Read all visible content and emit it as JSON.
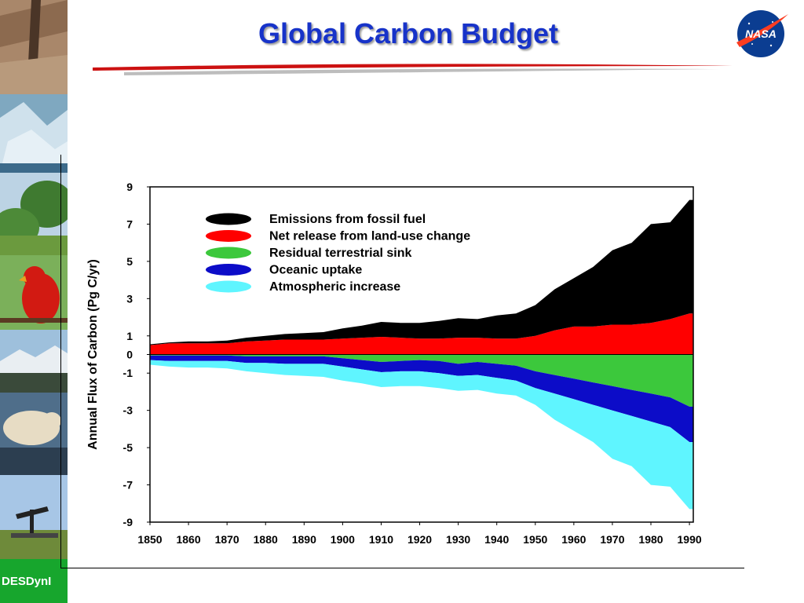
{
  "slide": {
    "title": "Global Carbon Budget",
    "brand_label": "DESDynI",
    "logo_text": "NASA"
  },
  "colors": {
    "title": "#1733c9",
    "fossil": "#000000",
    "landuse": "#ff0000",
    "terrestrial": "#3cc83c",
    "oceanic": "#0c0cc8",
    "atmospheric": "#5ff5ff",
    "brand": "#17a62d",
    "swoosh": "#cc1111"
  },
  "chart_data": {
    "type": "area",
    "title": "",
    "ylabel": "Annual Flux of Carbon (Pg C/yr)",
    "xlabel": "",
    "xlim": [
      1850,
      1991
    ],
    "ylim": [
      -9,
      9
    ],
    "x_ticks": [
      1850,
      1860,
      1870,
      1880,
      1890,
      1900,
      1910,
      1920,
      1930,
      1940,
      1950,
      1960,
      1970,
      1980,
      1990
    ],
    "y_ticks": [
      9,
      7,
      5,
      3,
      1,
      0,
      -1,
      -3,
      -5,
      -7,
      -9
    ],
    "legend_position": "top-left",
    "x": [
      1850,
      1855,
      1860,
      1865,
      1870,
      1875,
      1880,
      1885,
      1890,
      1895,
      1900,
      1905,
      1910,
      1915,
      1920,
      1925,
      1930,
      1935,
      1940,
      1945,
      1950,
      1955,
      1960,
      1965,
      1970,
      1975,
      1980,
      1985,
      1990
    ],
    "series": [
      {
        "name": "Emissions from fossil fuel",
        "color": "#000000",
        "values": [
          0.05,
          0.05,
          0.1,
          0.1,
          0.15,
          0.2,
          0.25,
          0.3,
          0.35,
          0.4,
          0.55,
          0.65,
          0.8,
          0.8,
          0.85,
          0.95,
          1.05,
          1.0,
          1.25,
          1.35,
          1.65,
          2.2,
          2.6,
          3.2,
          4.0,
          4.4,
          5.3,
          5.2,
          6.1
        ]
      },
      {
        "name": "Net release from land-use change",
        "color": "#ff0000",
        "values": [
          0.5,
          0.6,
          0.6,
          0.6,
          0.6,
          0.7,
          0.75,
          0.8,
          0.8,
          0.8,
          0.85,
          0.9,
          0.95,
          0.9,
          0.85,
          0.85,
          0.9,
          0.9,
          0.85,
          0.85,
          1.0,
          1.3,
          1.5,
          1.5,
          1.6,
          1.6,
          1.7,
          1.9,
          2.2
        ]
      },
      {
        "name": "Residual terrestrial sink",
        "color": "#3cc83c",
        "values": [
          -0.05,
          -0.05,
          -0.05,
          -0.05,
          -0.05,
          -0.1,
          -0.1,
          -0.1,
          -0.1,
          -0.1,
          -0.2,
          -0.3,
          -0.4,
          -0.35,
          -0.3,
          -0.35,
          -0.5,
          -0.4,
          -0.5,
          -0.6,
          -0.9,
          -1.1,
          -1.3,
          -1.5,
          -1.7,
          -1.9,
          -2.1,
          -2.3,
          -2.8
        ]
      },
      {
        "name": "Oceanic uptake",
        "color": "#0c0cc8",
        "values": [
          -0.25,
          -0.3,
          -0.3,
          -0.3,
          -0.3,
          -0.35,
          -0.35,
          -0.4,
          -0.4,
          -0.4,
          -0.45,
          -0.5,
          -0.55,
          -0.55,
          -0.6,
          -0.65,
          -0.65,
          -0.7,
          -0.75,
          -0.8,
          -0.9,
          -1.0,
          -1.1,
          -1.2,
          -1.3,
          -1.4,
          -1.5,
          -1.6,
          -1.9
        ]
      },
      {
        "name": "Atmospheric increase",
        "color": "#5ff5ff",
        "values": [
          -0.25,
          -0.3,
          -0.35,
          -0.35,
          -0.4,
          -0.45,
          -0.55,
          -0.6,
          -0.65,
          -0.7,
          -0.75,
          -0.75,
          -0.8,
          -0.8,
          -0.8,
          -0.8,
          -0.8,
          -0.8,
          -0.85,
          -0.8,
          -0.9,
          -1.4,
          -1.7,
          -2.0,
          -2.6,
          -2.7,
          -3.4,
          -3.2,
          -3.6
        ]
      }
    ]
  }
}
